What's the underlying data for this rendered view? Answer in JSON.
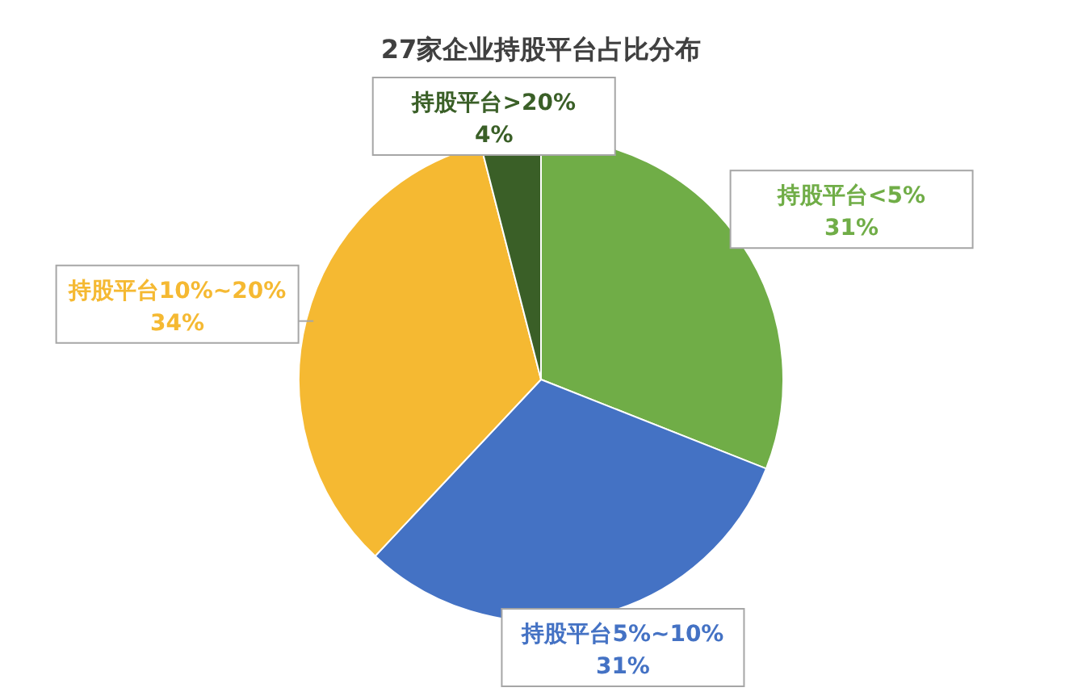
{
  "chart_data": {
    "type": "pie",
    "title": "27家企业持股平台占比分布",
    "categories": [
      "持股平台<5%",
      "持股平台5%~10%",
      "持股平台10%~20%",
      "持股平台>20%"
    ],
    "values": [
      31,
      31,
      34,
      4
    ],
    "value_labels": [
      "31%",
      "31%",
      "34%",
      "4%"
    ],
    "colors": [
      "#70ad47",
      "#4472c4",
      "#f5b932",
      "#3a5f27"
    ]
  }
}
